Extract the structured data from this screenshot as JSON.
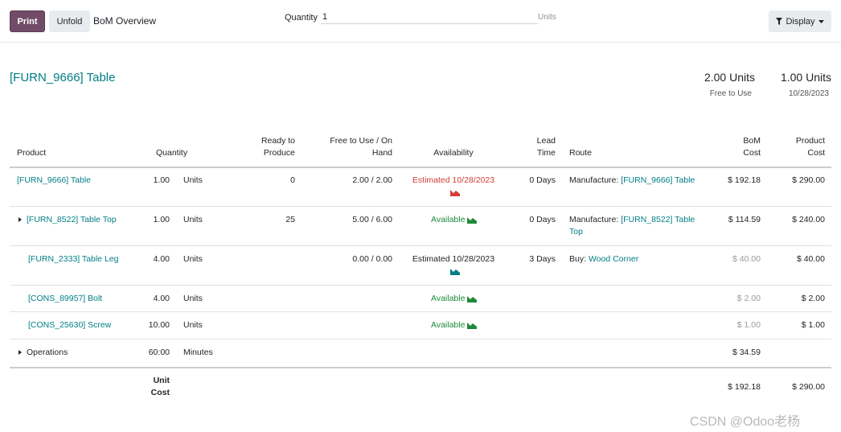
{
  "toolbar": {
    "print_label": "Print",
    "unfold_label": "Unfold",
    "breadcrumb": "BoM Overview",
    "quantity_label": "Quantity",
    "quantity_value": "1",
    "quantity_unit": "Units",
    "display_label": "Display"
  },
  "header": {
    "title": "[FURN_9666] Table",
    "free_to_use_value": "2.00 Units",
    "free_to_use_label": "Free to Use",
    "date_value": "1.00 Units",
    "date_label": "10/28/2023"
  },
  "columns": {
    "product": "Product",
    "quantity": "Quantity",
    "ready_1": "Ready to",
    "ready_2": "Produce",
    "free_1": "Free to Use / On",
    "free_2": "Hand",
    "availability": "Availability",
    "lead_1": "Lead",
    "lead_2": "Time",
    "route": "Route",
    "bom_1": "BoM",
    "bom_2": "Cost",
    "prod_1": "Product",
    "prod_2": "Cost"
  },
  "rows": [
    {
      "product": "[FURN_9666] Table",
      "qty": "1.00",
      "uom": "Units",
      "ready": "0",
      "free": "2.00 / 2.00",
      "availability": "Estimated 10/28/2023",
      "lead": "0 Days",
      "route_prefix": "Manufacture:",
      "route_link": "[FURN_9666] Table",
      "route_link2": "",
      "bom_cost": "$ 192.18",
      "product_cost": "$ 290.00"
    },
    {
      "product": "[FURN_8522] Table Top",
      "qty": "1.00",
      "uom": "Units",
      "ready": "25",
      "free": "5.00 / 6.00",
      "availability": "Available",
      "lead": "0 Days",
      "route_prefix": "Manufacture:",
      "route_link": "[FURN_8522] Table",
      "route_link2": "Top",
      "bom_cost": "$ 114.59",
      "product_cost": "$ 240.00"
    },
    {
      "product": "[FURN_2333] Table Leg",
      "qty": "4.00",
      "uom": "Units",
      "ready": "",
      "free": "0.00 / 0.00",
      "availability": "Estimated 10/28/2023",
      "lead": "3 Days",
      "route_prefix": "Buy:",
      "route_link": "Wood Corner",
      "route_link2": "",
      "bom_cost": "$ 40.00",
      "product_cost": "$ 40.00"
    },
    {
      "product": "[CONS_89957] Bolt",
      "qty": "4.00",
      "uom": "Units",
      "availability": "Available",
      "bom_cost": "$ 2.00",
      "product_cost": "$ 2.00"
    },
    {
      "product": "[CONS_25630] Screw",
      "qty": "10.00",
      "uom": "Units",
      "availability": "Available",
      "bom_cost": "$ 1.00",
      "product_cost": "$ 1.00"
    },
    {
      "product": "Operations",
      "qty": "60:00",
      "uom": "Minutes",
      "bom_cost": "$ 34.59"
    }
  ],
  "footer": {
    "unit_1": "Unit",
    "unit_2": "Cost",
    "bom_cost": "$ 192.18",
    "product_cost": "$ 290.00"
  },
  "watermark": "CSDN @Odoo老杨",
  "colors": {
    "primary": "#714B67",
    "link": "#017e84",
    "available": "#1d8a3a",
    "late": "#d23f3a"
  }
}
